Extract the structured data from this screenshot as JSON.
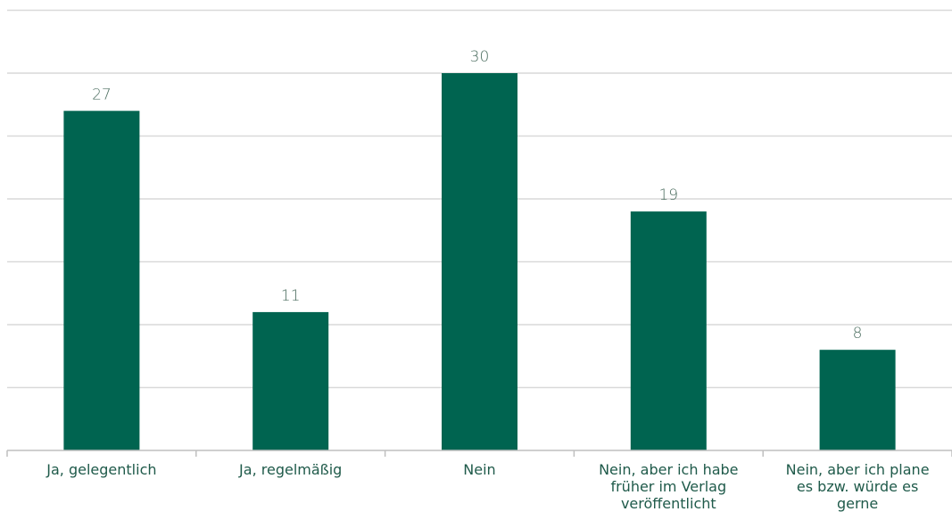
{
  "chart_data": {
    "type": "bar",
    "categories": [
      "Ja, gelegentlich",
      "Ja, regelmäßig",
      "Nein",
      "Nein, aber ich habe früher im Verlag veröffentlicht",
      "Nein, aber ich plane es bzw. würde es gerne"
    ],
    "category_lines": [
      [
        "Ja, gelegentlich"
      ],
      [
        "Ja, regelmäßig"
      ],
      [
        "Nein"
      ],
      [
        "Nein, aber ich habe",
        "früher im Verlag",
        "veröffentlicht"
      ],
      [
        "Nein, aber ich plane",
        "es bzw. würde es",
        "gerne"
      ]
    ],
    "values": [
      27,
      11,
      30,
      19,
      8
    ],
    "data_labels": [
      "27",
      "11",
      "30",
      "19",
      "8"
    ],
    "ylim": [
      0,
      35
    ],
    "grid_step": 5,
    "grid": true,
    "title": "",
    "xlabel": "",
    "ylabel": "",
    "colors": {
      "bar": "#006450",
      "grid": "#d9d9d9",
      "label": "#4c6e60",
      "category": "#1f5a4a"
    }
  }
}
